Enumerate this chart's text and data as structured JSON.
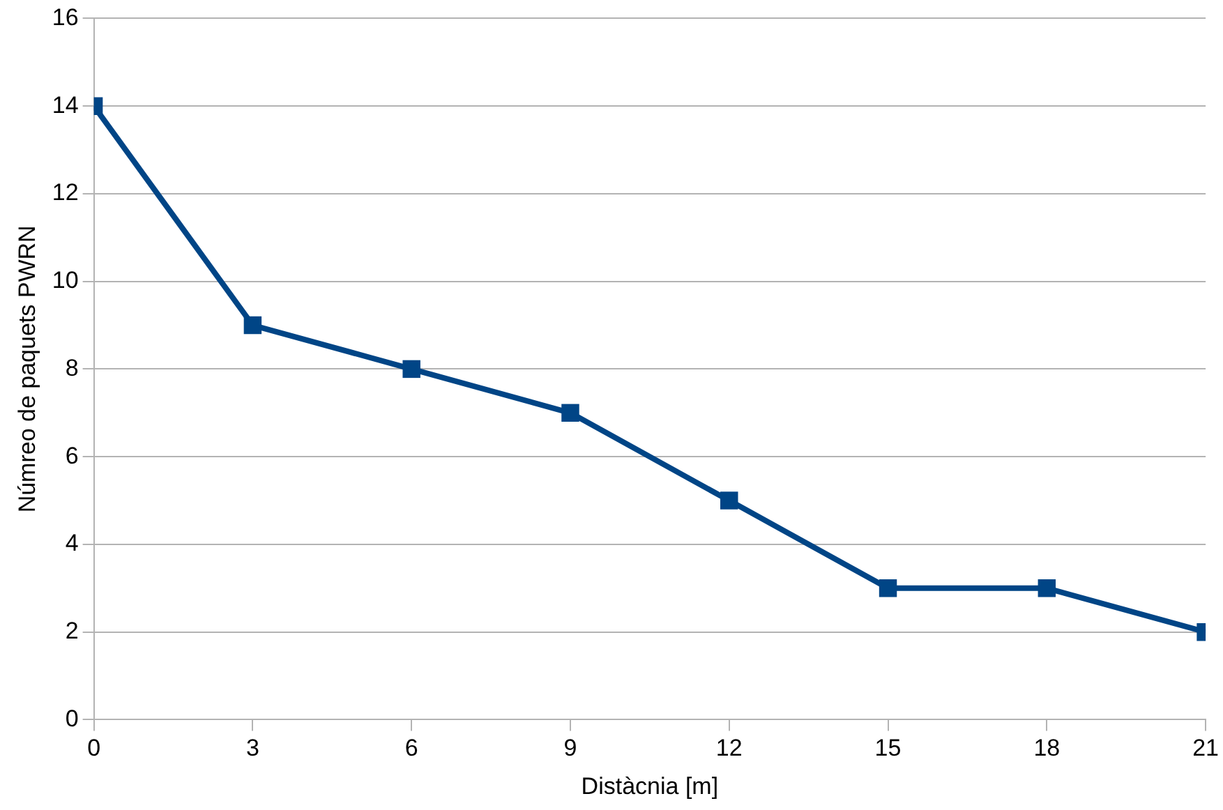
{
  "chart_data": {
    "type": "line",
    "xlabel": "Distàcnia [m]",
    "ylabel": "Númreo de paquets PWRN",
    "x": [
      0,
      3,
      6,
      9,
      12,
      15,
      18,
      21
    ],
    "series": [
      {
        "color": "#004586",
        "values": [
          14,
          9,
          8,
          7,
          5,
          3,
          3,
          2
        ]
      }
    ],
    "xlim": [
      0,
      21
    ],
    "xticks": [
      0,
      3,
      6,
      9,
      12,
      15,
      18,
      21
    ],
    "ylim": [
      0,
      16
    ],
    "yticks": [
      0,
      2,
      4,
      6,
      8,
      10,
      12,
      14,
      16
    ],
    "grid": "y",
    "legend": false,
    "marker": "square",
    "line_style": "solid"
  }
}
